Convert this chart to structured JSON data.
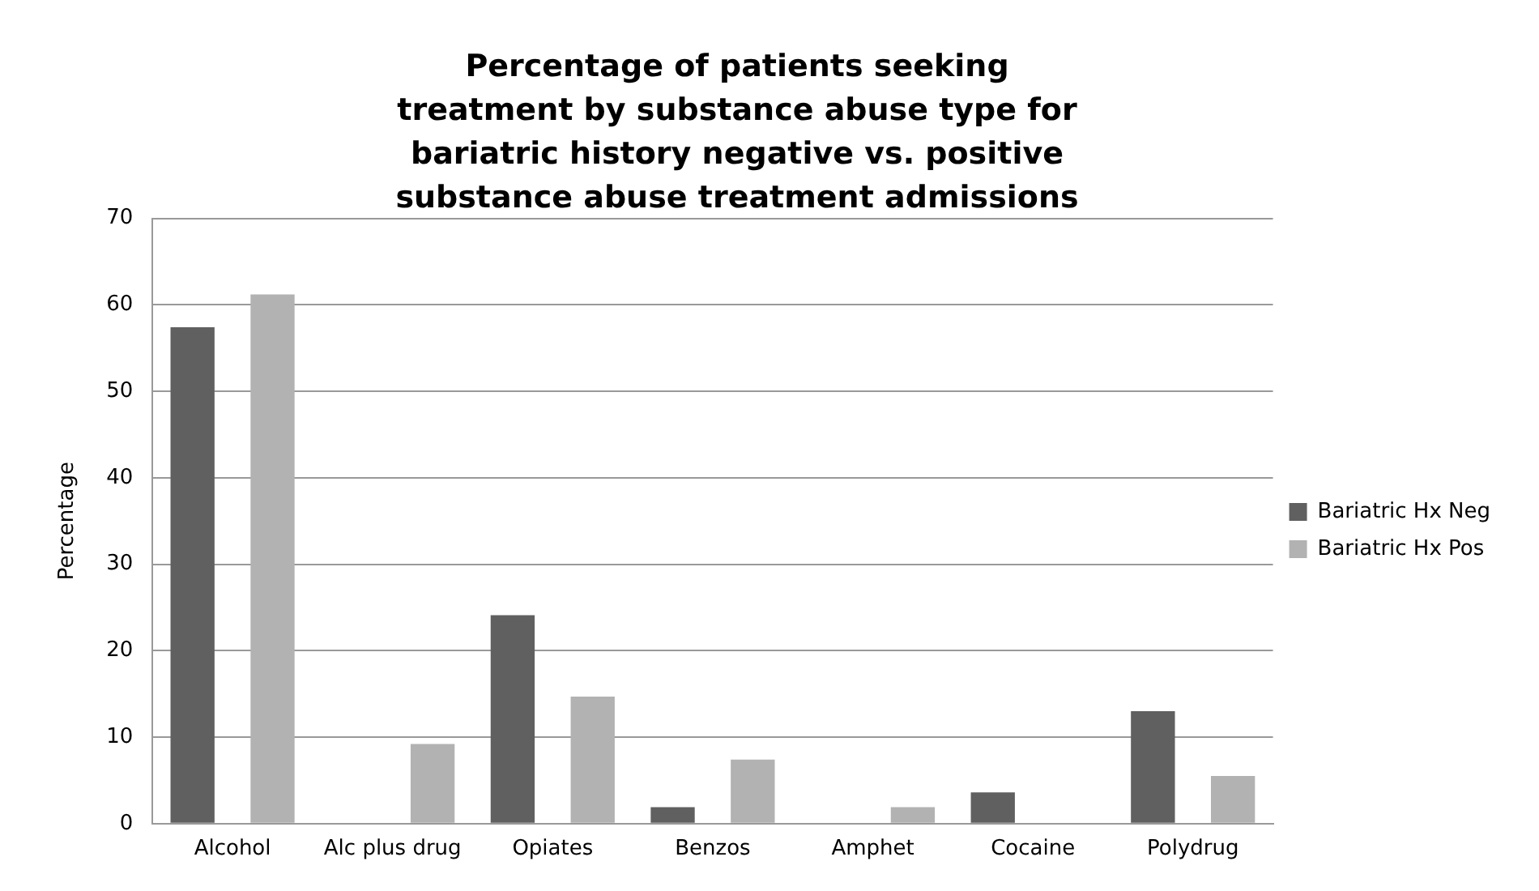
{
  "chart_data": {
    "type": "bar",
    "title": "Percentage of patients seeking treatment by substance abuse type for bariatric  history negative vs. positive substance abuse treatment admissions",
    "ylabel": "Percentage",
    "categories": [
      "Alcohol",
      "Alc plus drug",
      "Opiates",
      "Benzos",
      "Amphet",
      "Cocaine",
      "Polydrug"
    ],
    "series": [
      {
        "name": "Bariatric Hx Neg",
        "color": "#606060",
        "values": [
          57.4,
          0,
          24.1,
          1.9,
          0,
          3.6,
          13.0
        ]
      },
      {
        "name": "Bariatric Hx Pos",
        "color": "#b2b2b2",
        "values": [
          61.2,
          9.2,
          14.7,
          7.4,
          1.9,
          0,
          5.5
        ]
      }
    ],
    "ylim": [
      0,
      70
    ],
    "yticks": [
      0,
      10,
      20,
      30,
      40,
      50,
      60,
      70
    ],
    "grid": "y",
    "legend": "right"
  }
}
